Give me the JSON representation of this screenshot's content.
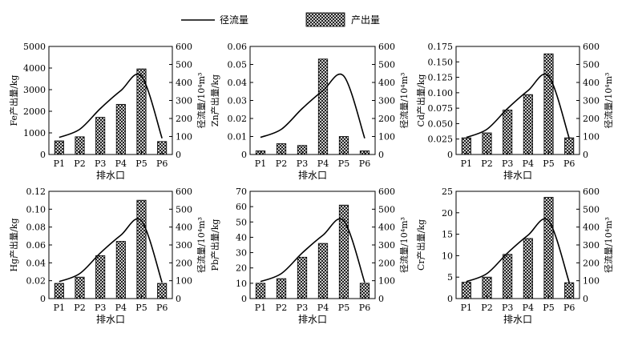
{
  "legend": {
    "line_label": "径流量",
    "bar_label": "产出量"
  },
  "chart_data": [
    {
      "type": "bar",
      "categories": [
        "P1",
        "P2",
        "P3",
        "P4",
        "P5",
        "P6"
      ],
      "bar_values": [
        630,
        820,
        1720,
        2320,
        3960,
        600
      ],
      "line_values": [
        95,
        140,
        255,
        355,
        435,
        90
      ],
      "ylabel_left": "Fe产出量/kg",
      "ylabel_right": "径流量/10⁴m³",
      "xlabel": "排水口",
      "ylim_left": [
        0,
        5000
      ],
      "yticks_left": [
        "0",
        "1000",
        "2000",
        "3000",
        "4000",
        "5000"
      ],
      "ylim_right": [
        0,
        600
      ],
      "yticks_right": [
        "0",
        "100",
        "200",
        "300",
        "400",
        "500",
        "600"
      ]
    },
    {
      "type": "bar",
      "categories": [
        "P1",
        "P2",
        "P3",
        "P4",
        "P5",
        "P6"
      ],
      "bar_values": [
        0.002,
        0.006,
        0.005,
        0.053,
        0.01,
        0.002
      ],
      "line_values": [
        95,
        140,
        255,
        355,
        435,
        90
      ],
      "ylabel_left": "Zn产出量/kg",
      "ylabel_right": "径流量/10⁴m³",
      "xlabel": "排水口",
      "ylim_left": [
        0,
        0.06
      ],
      "yticks_left": [
        "0",
        "0.01",
        "0.02",
        "0.03",
        "0.04",
        "0.05",
        "0.06"
      ],
      "ylim_right": [
        0,
        600
      ],
      "yticks_right": [
        "0",
        "100",
        "200",
        "300",
        "400",
        "500",
        "600"
      ]
    },
    {
      "type": "bar",
      "categories": [
        "P1",
        "P2",
        "P3",
        "P4",
        "P5",
        "P6"
      ],
      "bar_values": [
        0.027,
        0.035,
        0.072,
        0.097,
        0.163,
        0.027
      ],
      "line_values": [
        95,
        140,
        255,
        355,
        435,
        90
      ],
      "ylabel_left": "Cd产出量/kg",
      "ylabel_right": "径流量/10⁴m³",
      "xlabel": "排水口",
      "ylim_left": [
        0,
        0.175
      ],
      "yticks_left": [
        "0",
        "0.025",
        "0.050",
        "0.075",
        "0.100",
        "0.125",
        "0.150",
        "0.175"
      ],
      "ylim_right": [
        0,
        600
      ],
      "yticks_right": [
        "0",
        "100",
        "200",
        "300",
        "400",
        "500",
        "600"
      ]
    },
    {
      "type": "bar",
      "categories": [
        "P1",
        "P2",
        "P3",
        "P4",
        "P5",
        "P6"
      ],
      "bar_values": [
        0.017,
        0.024,
        0.048,
        0.064,
        0.11,
        0.017
      ],
      "line_values": [
        95,
        140,
        255,
        355,
        435,
        90
      ],
      "ylabel_left": "Hg产出量/kg",
      "ylabel_right": "径流量/10⁴m³",
      "xlabel": "排水口",
      "ylim_left": [
        0,
        0.12
      ],
      "yticks_left": [
        "0",
        "0.02",
        "0.04",
        "0.06",
        "0.08",
        "0.10",
        "0.12"
      ],
      "ylim_right": [
        0,
        600
      ],
      "yticks_right": [
        "0",
        "100",
        "200",
        "300",
        "400",
        "500",
        "600"
      ]
    },
    {
      "type": "bar",
      "categories": [
        "P1",
        "P2",
        "P3",
        "P4",
        "P5",
        "P6"
      ],
      "bar_values": [
        10,
        13,
        27,
        36,
        61,
        10
      ],
      "line_values": [
        95,
        140,
        255,
        355,
        435,
        90
      ],
      "ylabel_left": "Pb产出量/kg",
      "ylabel_right": "径流量/10⁴m³",
      "xlabel": "排水口",
      "ylim_left": [
        0,
        70
      ],
      "yticks_left": [
        "0",
        "10",
        "20",
        "30",
        "40",
        "50",
        "60",
        "70"
      ],
      "ylim_right": [
        0,
        600
      ],
      "yticks_right": [
        "0",
        "100",
        "200",
        "300",
        "400",
        "500",
        "600"
      ]
    },
    {
      "type": "bar",
      "categories": [
        "P1",
        "P2",
        "P3",
        "P4",
        "P5",
        "P6"
      ],
      "bar_values": [
        3.8,
        5.0,
        10.3,
        14.0,
        23.6,
        3.7
      ],
      "line_values": [
        95,
        140,
        255,
        355,
        435,
        90
      ],
      "ylabel_left": "Cr产出量/kg",
      "ylabel_right": "径流量/10⁴m³",
      "xlabel": "排水口",
      "ylim_left": [
        0,
        25
      ],
      "yticks_left": [
        "0",
        "5",
        "10",
        "15",
        "20",
        "25"
      ],
      "ylim_right": [
        0,
        600
      ],
      "yticks_right": [
        "0",
        "100",
        "200",
        "300",
        "400",
        "500",
        "600"
      ]
    }
  ]
}
